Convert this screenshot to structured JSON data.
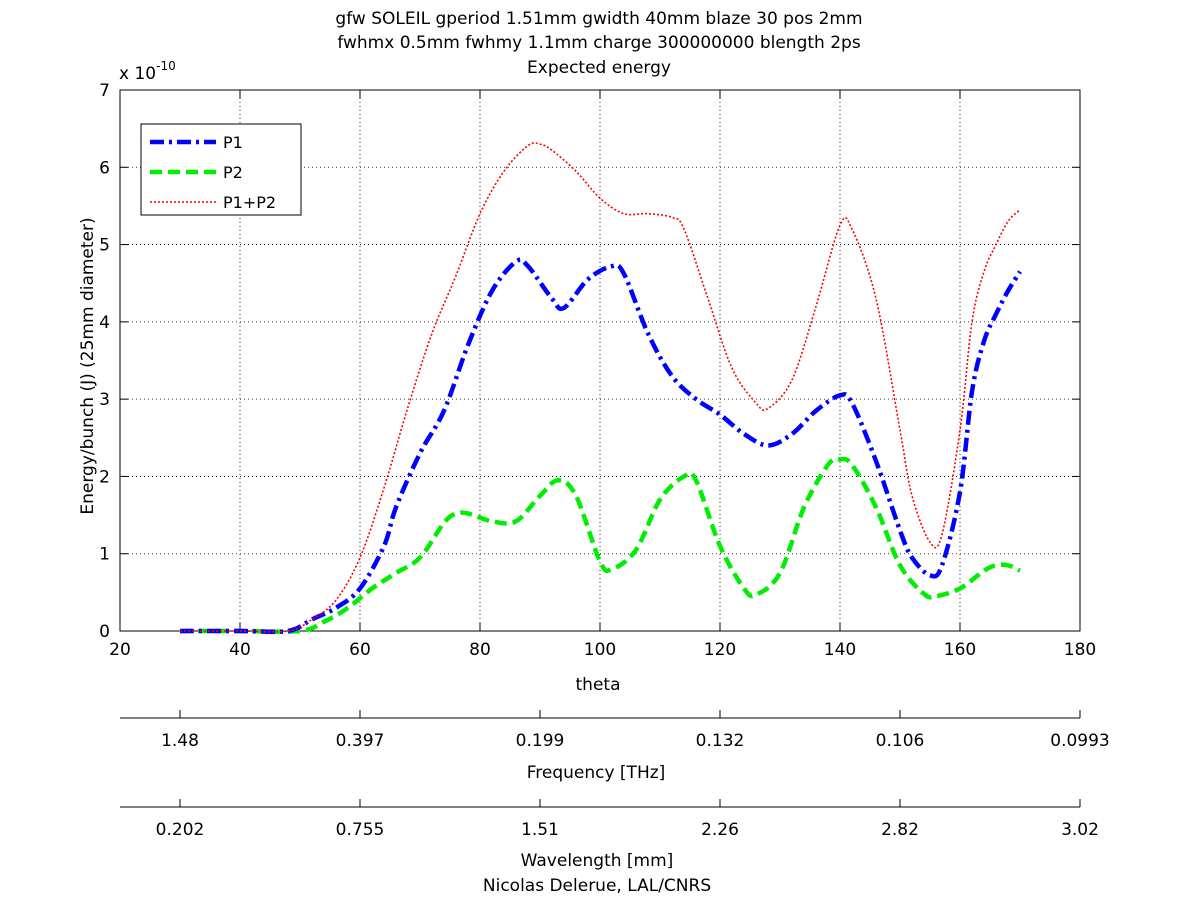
{
  "chart_data": {
    "type": "line",
    "title_lines": [
      "gfw SOLEIL gperiod 1.51mm gwidth 40mm blaze 30 pos 2mm",
      "fwhmx 0.5mm fwhmy 1.1mm charge 300000000 blength 2ps",
      "Expected energy"
    ],
    "xlabel": "theta",
    "ylabel": "Energy/bunch (J) (25mm diameter)",
    "y_exponent": {
      "base": "x 10",
      "power": "-10"
    },
    "xlim": [
      20,
      180
    ],
    "ylim": [
      0,
      7
    ],
    "x_ticks": [
      20,
      40,
      60,
      80,
      100,
      120,
      140,
      160,
      180
    ],
    "y_ticks": [
      0,
      1,
      2,
      3,
      4,
      5,
      6,
      7
    ],
    "grid": true,
    "legend_position": "top-left",
    "series": [
      {
        "name": "P1",
        "color": "#0000ff",
        "style": "dash-dot",
        "x": [
          30,
          40,
          48,
          52,
          56,
          60,
          64,
          66,
          70,
          74,
          78,
          82,
          86,
          88,
          92,
          94,
          98,
          102,
          104,
          108,
          112,
          116,
          120,
          124,
          128,
          132,
          136,
          140,
          142,
          146,
          150,
          152,
          155,
          157,
          160,
          162,
          164,
          166,
          168,
          170
        ],
        "values": [
          0,
          0,
          0,
          0.15,
          0.3,
          0.55,
          1.1,
          1.6,
          2.3,
          2.85,
          3.7,
          4.4,
          4.78,
          4.72,
          4.3,
          4.18,
          4.55,
          4.72,
          4.62,
          3.85,
          3.3,
          3.0,
          2.8,
          2.55,
          2.4,
          2.55,
          2.85,
          3.05,
          2.95,
          2.2,
          1.3,
          0.95,
          0.72,
          0.85,
          1.8,
          3.1,
          3.75,
          4.1,
          4.4,
          4.65
        ]
      },
      {
        "name": "P2",
        "color": "#00ee00",
        "style": "dashed",
        "x": [
          30,
          40,
          50,
          54,
          58,
          62,
          66,
          70,
          74,
          76,
          78,
          82,
          86,
          90,
          93,
          96,
          100,
          102,
          106,
          110,
          114,
          116,
          120,
          124,
          126,
          130,
          134,
          138,
          140,
          142,
          146,
          150,
          154,
          156,
          160,
          164,
          166,
          168,
          170
        ],
        "values": [
          0,
          0,
          0,
          0.12,
          0.3,
          0.55,
          0.75,
          0.95,
          1.4,
          1.52,
          1.52,
          1.42,
          1.42,
          1.75,
          1.95,
          1.75,
          0.9,
          0.8,
          1.05,
          1.7,
          2.0,
          1.95,
          1.1,
          0.55,
          0.47,
          0.75,
          1.6,
          2.15,
          2.22,
          2.15,
          1.6,
          0.85,
          0.48,
          0.45,
          0.55,
          0.78,
          0.85,
          0.85,
          0.78
        ]
      },
      {
        "name": "P1+P2",
        "color": "#ff0000",
        "style": "dotted",
        "x": [
          30,
          40,
          48,
          52,
          56,
          60,
          64,
          68,
          72,
          76,
          80,
          84,
          88,
          90,
          92,
          96,
          100,
          104,
          108,
          112,
          114,
          118,
          122,
          126,
          128,
          132,
          136,
          140,
          142,
          146,
          150,
          152,
          155,
          157,
          160,
          162,
          164,
          166,
          168,
          170
        ],
        "values": [
          0,
          0,
          0,
          0.15,
          0.4,
          0.95,
          1.85,
          2.9,
          3.85,
          4.6,
          5.4,
          5.95,
          6.28,
          6.3,
          6.22,
          5.95,
          5.6,
          5.4,
          5.4,
          5.35,
          5.2,
          4.3,
          3.4,
          2.95,
          2.88,
          3.25,
          4.2,
          5.25,
          5.2,
          4.3,
          2.6,
          1.75,
          1.15,
          1.25,
          2.6,
          4.0,
          4.65,
          5.0,
          5.3,
          5.45
        ]
      }
    ],
    "secondary_axes": [
      {
        "label": "Frequency [THz]",
        "tick_positions": [
          30,
          60,
          90,
          120,
          150,
          180
        ],
        "tick_labels": [
          "1.48",
          "0.397",
          "0.199",
          "0.132",
          "0.106",
          "0.0993"
        ]
      },
      {
        "label": "Wavelength [mm]",
        "tick_positions": [
          30,
          60,
          90,
          120,
          150,
          180
        ],
        "tick_labels": [
          "0.202",
          "0.755",
          "1.51",
          "2.26",
          "2.82",
          "3.02"
        ]
      }
    ],
    "footer": "Nicolas Delerue, LAL/CNRS"
  }
}
